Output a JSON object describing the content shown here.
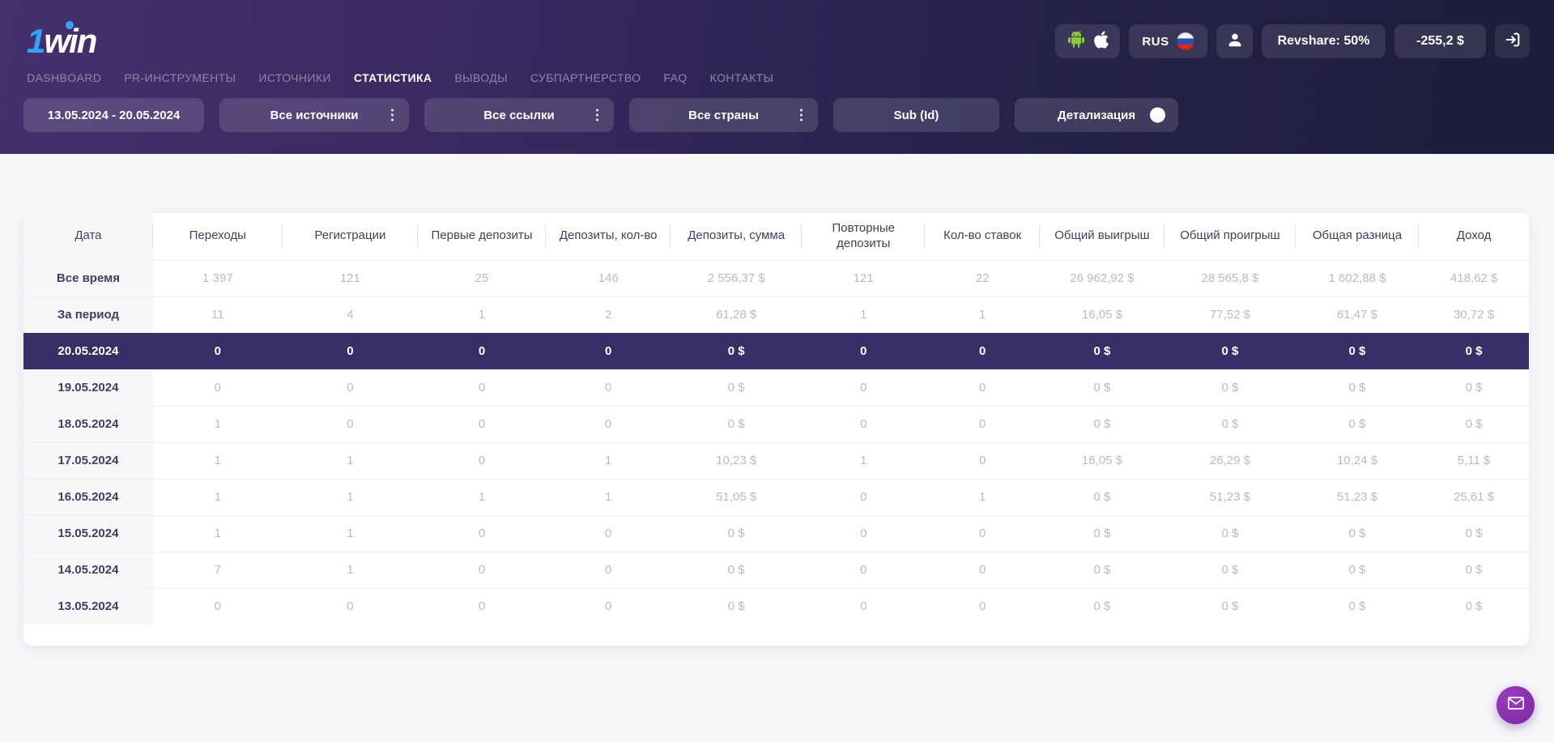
{
  "header": {
    "logo_text": "1win",
    "apps_button": {
      "icons": [
        "android-icon",
        "apple-icon"
      ]
    },
    "language_button": {
      "label": "RUS",
      "icon": "russia-flag-icon"
    },
    "profile_button": {
      "icon": "user-icon"
    },
    "revshare_button": {
      "label": "Revshare: 50%"
    },
    "balance_button": {
      "label": "-255,2 $"
    },
    "login_button": {
      "icon": "login-arrow-icon"
    }
  },
  "nav": {
    "items": [
      {
        "key": "dashboard",
        "label": "DASHBOARD",
        "active": false
      },
      {
        "key": "pr-tools",
        "label": "PR-ИНСТРУМЕНТЫ",
        "active": false
      },
      {
        "key": "sources",
        "label": "ИСТОЧНИКИ",
        "active": false
      },
      {
        "key": "statistics",
        "label": "СТАТИСТИКА",
        "active": true
      },
      {
        "key": "withdrawals",
        "label": "ВЫВОДЫ",
        "active": false
      },
      {
        "key": "subpartnership",
        "label": "СУБПАРТНЕРСТВО",
        "active": false
      },
      {
        "key": "faq",
        "label": "FAQ",
        "active": false
      },
      {
        "key": "contacts",
        "label": "КОНТАКТЫ",
        "active": false
      }
    ]
  },
  "filters": {
    "date_range": {
      "label": "13.05.2024 - 20.05.2024"
    },
    "sources": {
      "label": "Все источники",
      "icon": "kebab-menu-icon"
    },
    "links": {
      "label": "Все ссылки",
      "icon": "kebab-menu-icon"
    },
    "countries": {
      "label": "Все страны",
      "icon": "kebab-menu-icon"
    },
    "sub_id": {
      "label": "Sub (Id)"
    },
    "detail_toggle": {
      "label": "Детализация",
      "state": "off",
      "icon": "toggle-knob"
    }
  },
  "table": {
    "columns": [
      "Дата",
      "Переходы",
      "Регистрации",
      "Первые депозиты",
      "Депозиты, кол-во",
      "Депозиты, сумма",
      "Повторные депозиты",
      "Кол-во ставок",
      "Общий выигрыш",
      "Общий проигрыш",
      "Общая разница",
      "Доход"
    ],
    "rows": [
      {
        "label": "Все время",
        "kind": "summary",
        "highlight": false,
        "values": [
          "1 397",
          "121",
          "25",
          "146",
          "2 556,37 $",
          "121",
          "22",
          "26 962,92 $",
          "28 565,8 $",
          "1 602,88 $",
          "418,62 $"
        ]
      },
      {
        "label": "За период",
        "kind": "summary",
        "highlight": false,
        "values": [
          "11",
          "4",
          "1",
          "2",
          "61,28 $",
          "1",
          "1",
          "16,05 $",
          "77,52 $",
          "61,47 $",
          "30,72 $"
        ]
      },
      {
        "label": "20.05.2024",
        "kind": "date",
        "highlight": true,
        "values": [
          "0",
          "0",
          "0",
          "0",
          "0 $",
          "0",
          "0",
          "0 $",
          "0 $",
          "0 $",
          "0 $"
        ]
      },
      {
        "label": "19.05.2024",
        "kind": "date",
        "highlight": false,
        "values": [
          "0",
          "0",
          "0",
          "0",
          "0 $",
          "0",
          "0",
          "0 $",
          "0 $",
          "0 $",
          "0 $"
        ]
      },
      {
        "label": "18.05.2024",
        "kind": "date",
        "highlight": false,
        "values": [
          "1",
          "0",
          "0",
          "0",
          "0 $",
          "0",
          "0",
          "0 $",
          "0 $",
          "0 $",
          "0 $"
        ]
      },
      {
        "label": "17.05.2024",
        "kind": "date",
        "highlight": false,
        "values": [
          "1",
          "1",
          "0",
          "1",
          "10,23 $",
          "1",
          "0",
          "16,05 $",
          "26,29 $",
          "10,24 $",
          "5,11 $"
        ]
      },
      {
        "label": "16.05.2024",
        "kind": "date",
        "highlight": false,
        "values": [
          "1",
          "1",
          "1",
          "1",
          "51,05 $",
          "0",
          "1",
          "0 $",
          "51,23 $",
          "51,23 $",
          "25,61 $"
        ]
      },
      {
        "label": "15.05.2024",
        "kind": "date",
        "highlight": false,
        "values": [
          "1",
          "1",
          "0",
          "0",
          "0 $",
          "0",
          "0",
          "0 $",
          "0 $",
          "0 $",
          "0 $"
        ]
      },
      {
        "label": "14.05.2024",
        "kind": "date",
        "highlight": false,
        "values": [
          "7",
          "1",
          "0",
          "0",
          "0 $",
          "0",
          "0",
          "0 $",
          "0 $",
          "0 $",
          "0 $"
        ]
      },
      {
        "label": "13.05.2024",
        "kind": "date",
        "highlight": false,
        "values": [
          "0",
          "0",
          "0",
          "0",
          "0 $",
          "0",
          "0",
          "0 $",
          "0 $",
          "0 $",
          "0 $"
        ]
      }
    ]
  },
  "chat_button": {
    "icon": "envelope-icon"
  },
  "colors": {
    "header_gradient_start": "#45316d",
    "header_gradient_end": "#1d1c3a",
    "highlight_row": "#3a2e66",
    "accent_blue": "#35a1f7",
    "android_green": "#8fc93c",
    "chat_purple": "#7c27a2",
    "flag_blue": "#2a4fae",
    "flag_red": "#d52b1e"
  }
}
